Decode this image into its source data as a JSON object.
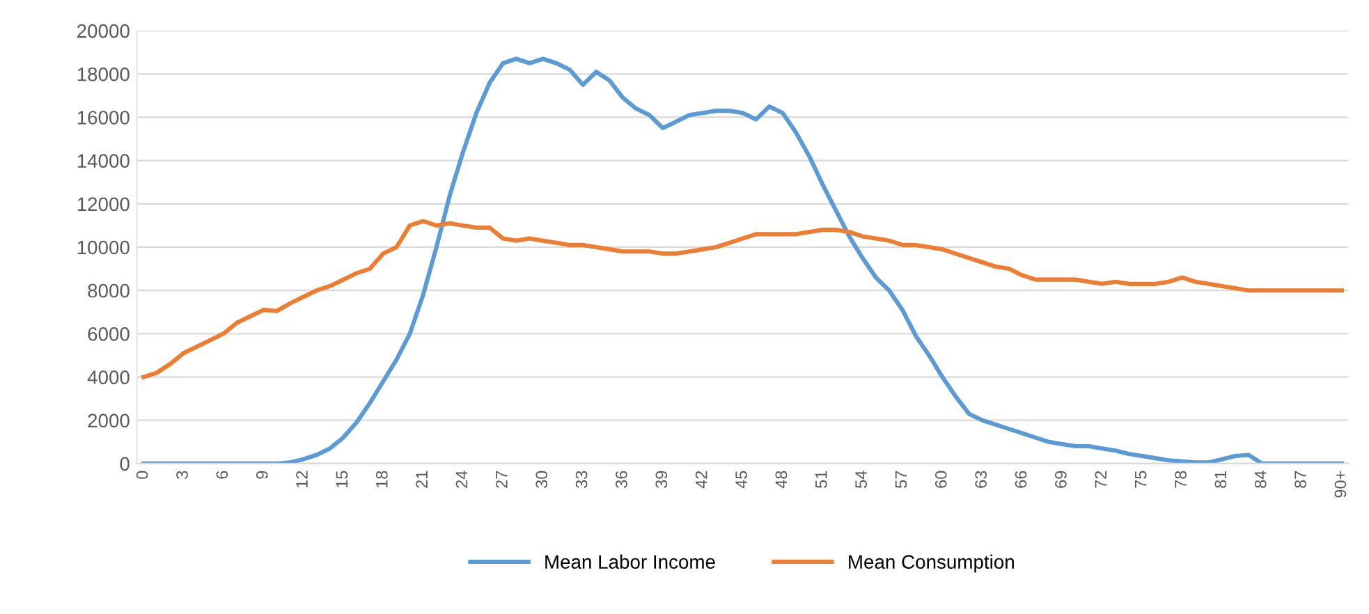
{
  "chart_data": {
    "type": "line",
    "categories": [
      "0",
      null,
      null,
      "3",
      null,
      null,
      "6",
      null,
      null,
      "9",
      null,
      null,
      "12",
      null,
      null,
      "15",
      null,
      null,
      "18",
      null,
      null,
      "21",
      null,
      null,
      "24",
      null,
      null,
      "27",
      null,
      null,
      "30",
      null,
      null,
      "33",
      null,
      null,
      "36",
      null,
      null,
      "39",
      null,
      null,
      "42",
      null,
      null,
      "45",
      null,
      null,
      "48",
      null,
      null,
      "51",
      null,
      null,
      "54",
      null,
      null,
      "57",
      null,
      null,
      "60",
      null,
      null,
      "63",
      null,
      null,
      "66",
      null,
      null,
      "69",
      null,
      null,
      "72",
      null,
      null,
      "75",
      null,
      null,
      "78",
      null,
      null,
      "81",
      null,
      null,
      "84",
      null,
      null,
      "87",
      null,
      null,
      "90+"
    ],
    "series": [
      {
        "name": "Mean Labor Income",
        "color": "#5b9bd5",
        "values": [
          0,
          0,
          0,
          0,
          0,
          0,
          0,
          0,
          0,
          0,
          0,
          50,
          200,
          400,
          700,
          1200,
          1900,
          2800,
          3800,
          4800,
          6000,
          7800,
          10000,
          12400,
          14400,
          16200,
          17600,
          18500,
          18700,
          18500,
          18700,
          18500,
          18200,
          17500,
          18100,
          17700,
          16900,
          16400,
          16100,
          15500,
          15800,
          16100,
          16200,
          16300,
          16300,
          16200,
          15900,
          16500,
          16200,
          15300,
          14200,
          12900,
          11700,
          10500,
          9500,
          8600,
          8000,
          7100,
          5900,
          5000,
          4000,
          3100,
          2300,
          2000,
          1800,
          1600,
          1400,
          1200,
          1000,
          900,
          800,
          800,
          700,
          600,
          450,
          350,
          250,
          150,
          100,
          50,
          50,
          200,
          350,
          400,
          0,
          0,
          0,
          0,
          0,
          0,
          0
        ]
      },
      {
        "name": "Mean Consumption",
        "color": "#ed7d31",
        "values": [
          4000,
          4200,
          4600,
          5100,
          5400,
          5700,
          6000,
          6500,
          6800,
          7100,
          7050,
          7400,
          7700,
          8000,
          8200,
          8500,
          8800,
          9000,
          9700,
          10000,
          11000,
          11200,
          11000,
          11100,
          11000,
          10900,
          10900,
          10400,
          10300,
          10400,
          10300,
          10200,
          10100,
          10100,
          10000,
          9900,
          9800,
          9800,
          9800,
          9700,
          9700,
          9800,
          9900,
          10000,
          10200,
          10400,
          10600,
          10600,
          10600,
          10600,
          10700,
          10800,
          10800,
          10700,
          10500,
          10400,
          10300,
          10100,
          10100,
          10000,
          9900,
          9700,
          9500,
          9300,
          9100,
          9000,
          8700,
          8500,
          8500,
          8500,
          8500,
          8400,
          8300,
          8400,
          8300,
          8300,
          8300,
          8400,
          8600,
          8400,
          8300,
          8200,
          8100,
          8000,
          8000,
          8000,
          8000,
          8000,
          8000,
          8000,
          8000
        ]
      }
    ],
    "ylim": [
      0,
      20000
    ],
    "yticks": [
      0,
      2000,
      4000,
      6000,
      8000,
      10000,
      12000,
      14000,
      16000,
      18000,
      20000
    ],
    "grid": "y",
    "legend": "bottom",
    "marker": "none",
    "line_style": "solid"
  }
}
